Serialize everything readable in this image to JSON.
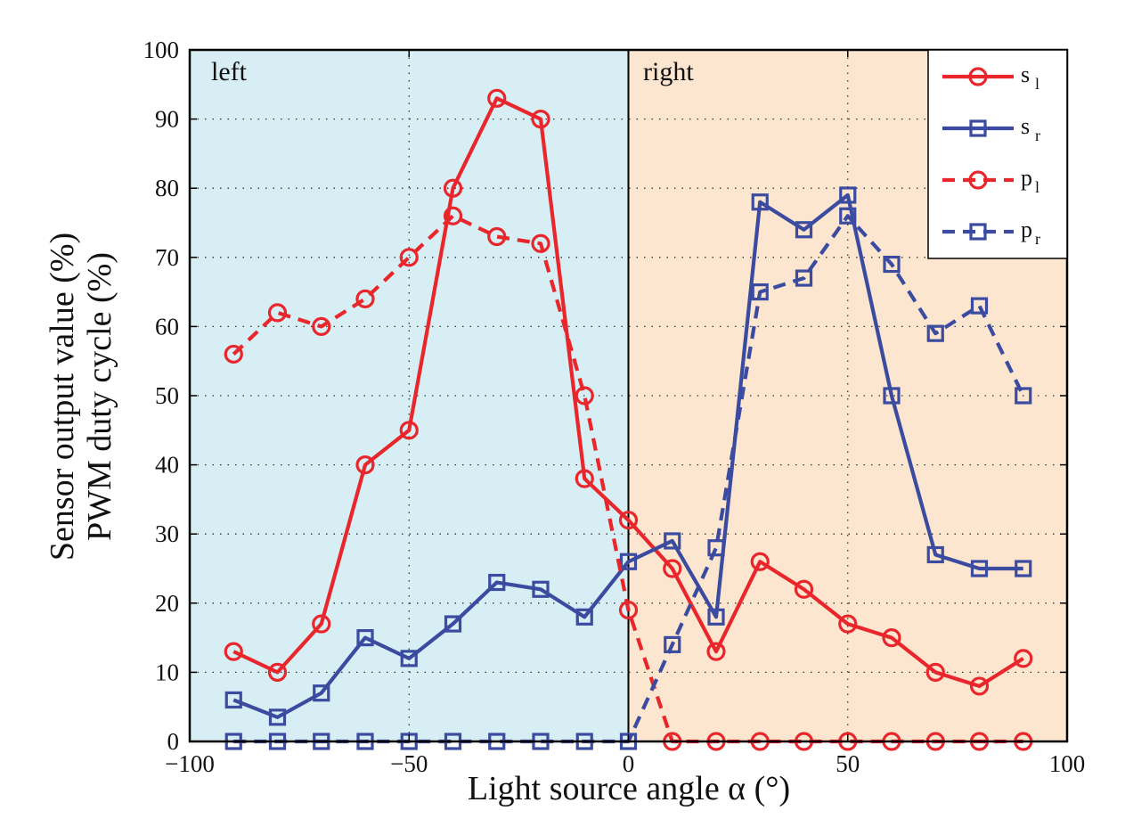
{
  "chart_data": {
    "type": "line",
    "xlabel": "Light source angle  α (°)",
    "ylabel_lines": [
      "Sensor output value (%)",
      "PWM duty cycle (%)"
    ],
    "xlim": [
      -100,
      100
    ],
    "ylim": [
      0,
      100
    ],
    "x_ticks": [
      -100,
      -50,
      0,
      50,
      100
    ],
    "x_tick_labels": [
      "−100",
      "−50",
      "0",
      "50",
      "100"
    ],
    "y_ticks": [
      0,
      10,
      20,
      30,
      40,
      50,
      60,
      70,
      80,
      90,
      100
    ],
    "y_tick_labels": [
      "0",
      "10",
      "20",
      "30",
      "40",
      "50",
      "60",
      "70",
      "80",
      "90",
      "100"
    ],
    "grid": true,
    "legend_position": "top-right",
    "regions": [
      {
        "label": "left",
        "from": -100,
        "to": 0,
        "color": "#d7eef4"
      },
      {
        "label": "right",
        "from": 0,
        "to": 100,
        "color": "#fde6cf"
      }
    ],
    "x": [
      -90,
      -80,
      -70,
      -60,
      -50,
      -40,
      -30,
      -20,
      -10,
      0,
      10,
      20,
      30,
      40,
      50,
      60,
      70,
      80,
      90
    ],
    "series": [
      {
        "name": "s",
        "sub": "l",
        "color": "#e8262b",
        "dashed": false,
        "marker": "circle",
        "values": [
          13,
          10,
          17,
          40,
          45,
          80,
          93,
          90,
          38,
          32,
          25,
          13,
          26,
          22,
          17,
          15,
          10,
          8,
          12
        ]
      },
      {
        "name": "s",
        "sub": "r",
        "color": "#3a4ba0",
        "dashed": false,
        "marker": "square",
        "values": [
          6,
          3.5,
          7,
          15,
          12,
          17,
          23,
          22,
          18,
          26,
          29,
          18,
          78,
          74,
          79,
          50,
          27,
          25,
          25
        ]
      },
      {
        "name": "p",
        "sub": "l",
        "color": "#e8262b",
        "dashed": true,
        "marker": "circle",
        "values": [
          56,
          62,
          60,
          64,
          70,
          76,
          73,
          72,
          50,
          19,
          0,
          0,
          0,
          0,
          0,
          0,
          0,
          0,
          0
        ]
      },
      {
        "name": "p",
        "sub": "r",
        "color": "#3a4ba0",
        "dashed": true,
        "marker": "square",
        "values": [
          0,
          0,
          0,
          0,
          0,
          0,
          0,
          0,
          0,
          0,
          14,
          28,
          65,
          67,
          76,
          69,
          59,
          63,
          50
        ]
      }
    ]
  }
}
